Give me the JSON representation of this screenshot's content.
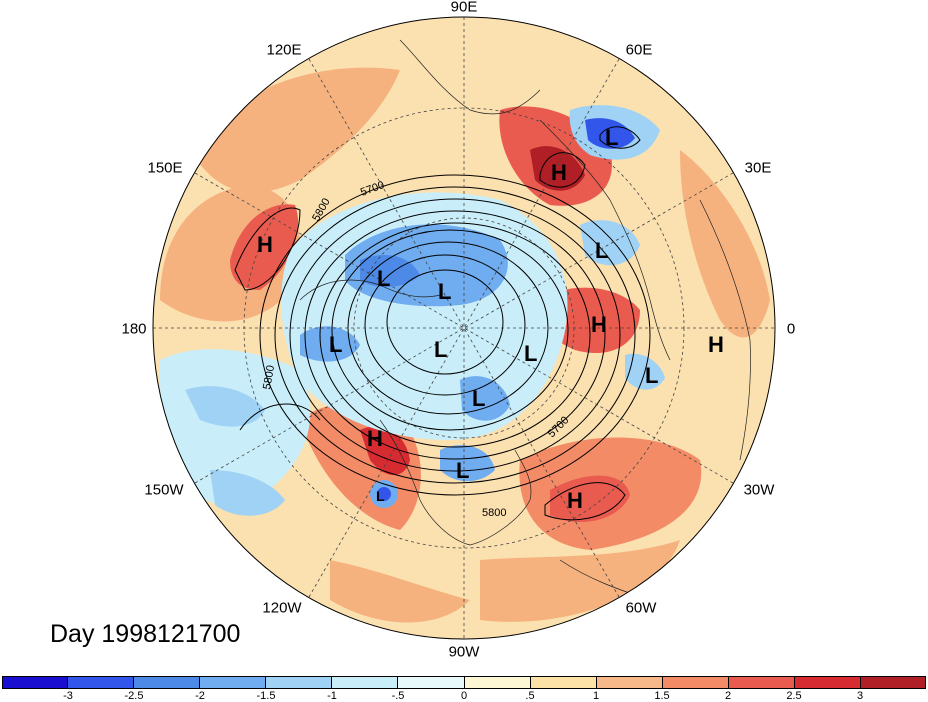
{
  "caption": "Day 1998121700",
  "longitude_labels": {
    "lon_90E": "90E",
    "lon_60E": "60E",
    "lon_30E": "30E",
    "lon_0": "0",
    "lon_30W": "30W",
    "lon_60W": "60W",
    "lon_90W": "90W",
    "lon_120W": "120W",
    "lon_150W": "150W",
    "lon_180": "180",
    "lon_150E": "150E",
    "lon_120E": "120E"
  },
  "contour_labels": [
    "5800",
    "5700",
    "5800",
    "5700",
    "5800"
  ],
  "pressure_centers": [
    "H",
    "H",
    "H",
    "H",
    "H",
    "H",
    "L",
    "L",
    "L",
    "L",
    "L",
    "L",
    "L",
    "L",
    "L",
    "L",
    "L"
  ],
  "colorbar": {
    "colors": [
      "#1a0fd0",
      "#3156e9",
      "#4d8ae8",
      "#70acf0",
      "#9fd2f5",
      "#c9eefa",
      "#e8f9fb",
      "#fdf6d4",
      "#fde2a8",
      "#f7b98a",
      "#f38b66",
      "#ea5b4f",
      "#d72b32",
      "#b01e26"
    ],
    "tick_labels": [
      "-3",
      "-2.5",
      "-2",
      "-1.5",
      "-1",
      "-.5",
      "0",
      ".5",
      "1",
      "1.5",
      "2",
      "2.5",
      "3"
    ]
  }
}
